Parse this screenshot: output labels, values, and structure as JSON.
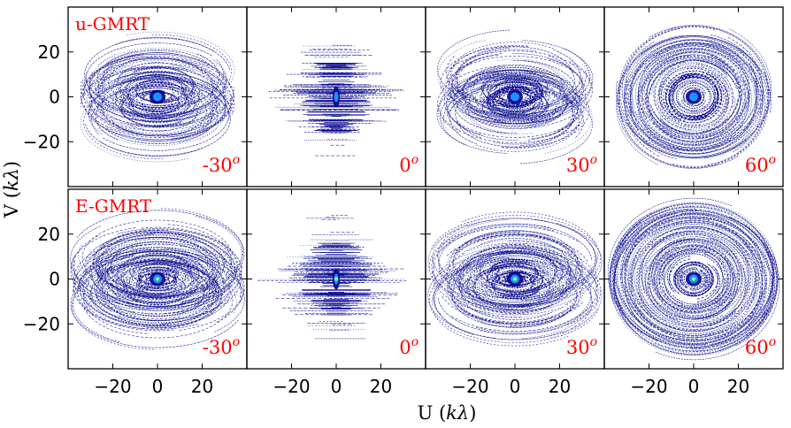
{
  "chart_data": {
    "type": "scatter",
    "title": "",
    "xlabel": "U (kλ)",
    "ylabel": "V (kλ)",
    "xlabel_parts": {
      "main": "U (",
      "var": "kλ",
      "end": ")"
    },
    "ylabel_parts": {
      "main": "V (",
      "var": "kλ",
      "end": ")"
    },
    "xlim": [
      -40,
      40
    ],
    "ylim": [
      -40,
      40
    ],
    "xticks": [
      -20,
      0,
      20
    ],
    "yticks": [
      -20,
      0,
      20
    ],
    "xtick_labels": [
      "−20",
      "0",
      "20"
    ],
    "ytick_labels": [
      "−20",
      "0",
      "20"
    ],
    "rows": [
      {
        "array": "u-GMRT",
        "max_baseline": 33
      },
      {
        "array": "E-GMRT",
        "max_baseline": 37
      }
    ],
    "columns": [
      {
        "declination_deg": -30,
        "label": "-30",
        "sup": "o"
      },
      {
        "declination_deg": 0,
        "label": "0",
        "sup": "o"
      },
      {
        "declination_deg": 30,
        "label": "30",
        "sup": "o"
      },
      {
        "declination_deg": 60,
        "label": "60",
        "sup": "o"
      }
    ],
    "colors": {
      "tracks": "#00008b",
      "core_mid": "#1e90ff",
      "core_center": "#7fff7f",
      "labels": "#ff0000"
    }
  }
}
